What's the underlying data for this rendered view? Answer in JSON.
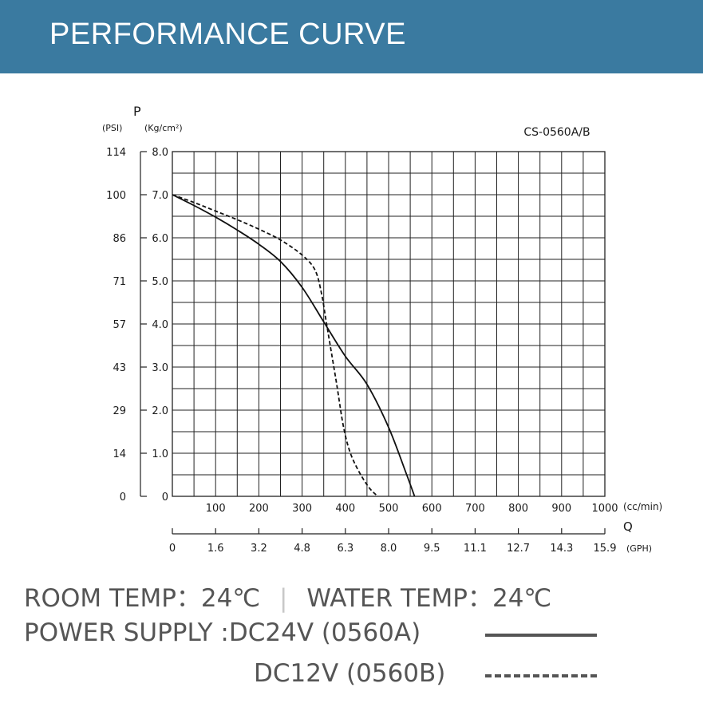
{
  "header": {
    "title": "PERFORMANCE CURVE"
  },
  "chart_data": {
    "type": "line",
    "title": "CS-0560A/B",
    "ylabel": "P",
    "ylabel_psi_unit": "(PSI)",
    "ylabel_kg_unit": "(Kg/cm²)",
    "xlabel": "Q",
    "xlabel_cc_unit": "(cc/min)",
    "xlabel_gph_unit": "(GPH)",
    "xlim": [
      0,
      1000
    ],
    "ylim": [
      0,
      8
    ],
    "grid": true,
    "x_ticks_cc": [
      "100",
      "200",
      "300",
      "400",
      "500",
      "600",
      "700",
      "800",
      "900",
      "1000"
    ],
    "x_ticks_gph": [
      "0",
      "1.6",
      "3.2",
      "4.8",
      "6.3",
      "8.0",
      "9.5",
      "11.1",
      "12.7",
      "14.3",
      "15.9"
    ],
    "y_ticks_kg": [
      "0",
      "1.0",
      "2.0",
      "3.0",
      "4.0",
      "5.0",
      "6.0",
      "7.0",
      "8.0"
    ],
    "y_ticks_psi": [
      "0",
      "14",
      "29",
      "43",
      "57",
      "71",
      "86",
      "100",
      "114"
    ],
    "series": [
      {
        "name": "DC24V (0560A)",
        "style": "solid",
        "x": [
          0,
          50,
          100,
          150,
          200,
          250,
          300,
          350,
          400,
          450,
          500,
          540,
          560
        ],
        "y": [
          7.0,
          6.75,
          6.48,
          6.18,
          5.85,
          5.45,
          4.85,
          4.05,
          3.25,
          2.6,
          1.6,
          0.55,
          0.0
        ]
      },
      {
        "name": "DC12V (0560B)",
        "style": "dashed",
        "x": [
          0,
          50,
          100,
          150,
          200,
          250,
          300,
          330,
          345,
          355,
          365,
          380,
          395,
          410,
          430,
          455,
          475
        ],
        "y": [
          7.0,
          6.82,
          6.62,
          6.42,
          6.2,
          5.95,
          5.6,
          5.25,
          4.7,
          4.1,
          3.5,
          2.6,
          1.65,
          1.05,
          0.6,
          0.2,
          0.0
        ]
      }
    ]
  },
  "info": {
    "room_temp": "ROOM TEMP：24℃",
    "separator": "|",
    "water_temp": "WATER TEMP：24℃",
    "power_supply_label": "POWER SUPPLY :",
    "dc24": "DC24V (0560A)",
    "dc12": "DC12V (0560B)"
  },
  "colors": {
    "header_bg": "#3a7aa0",
    "header_text": "#ffffff",
    "info_text": "#555555"
  }
}
